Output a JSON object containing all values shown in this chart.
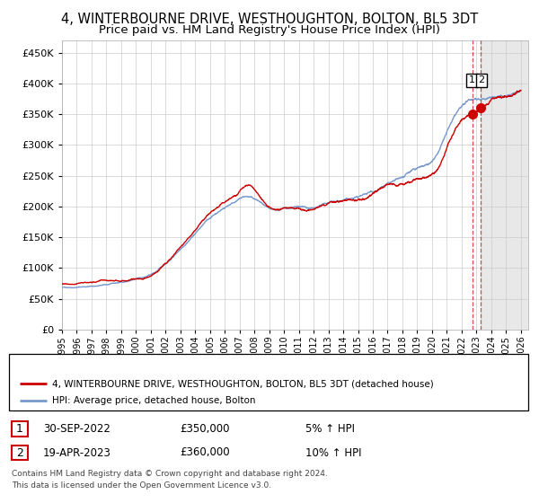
{
  "title": "4, WINTERBOURNE DRIVE, WESTHOUGHTON, BOLTON, BL5 3DT",
  "subtitle": "Price paid vs. HM Land Registry's House Price Index (HPI)",
  "title_fontsize": 10.5,
  "subtitle_fontsize": 9.5,
  "xlim_start": 1995.0,
  "xlim_end": 2026.5,
  "ylim": [
    0,
    470000
  ],
  "yticks": [
    0,
    50000,
    100000,
    150000,
    200000,
    250000,
    300000,
    350000,
    400000,
    450000
  ],
  "sale1_date": 2022.75,
  "sale1_price": 350000,
  "sale1_label": "1",
  "sale2_date": 2023.29,
  "sale2_price": 360000,
  "sale2_label": "2",
  "legend_line1": "4, WINTERBOURNE DRIVE, WESTHOUGHTON, BOLTON, BL5 3DT (detached house)",
  "legend_line2": "HPI: Average price, detached house, Bolton",
  "footer": "Contains HM Land Registry data © Crown copyright and database right 2024.\nThis data is licensed under the Open Government Licence v3.0.",
  "hpi_color": "#7799cc",
  "price_color": "#cc0000",
  "bg_color": "#ffffff",
  "grid_color": "#cccccc",
  "future_cutoff": 2023.29,
  "hpi_waypoints_x": [
    1995,
    1996,
    1997,
    1998,
    1999,
    2000,
    2001,
    2002,
    2003,
    2004,
    2005,
    2006,
    2007,
    2007.5,
    2008,
    2008.5,
    2009,
    2009.5,
    2010,
    2011,
    2012,
    2013,
    2014,
    2015,
    2016,
    2017,
    2018,
    2019,
    2020,
    2020.5,
    2021,
    2021.5,
    2022,
    2022.5,
    2022.75,
    2023.29,
    2024,
    2025,
    2026
  ],
  "hpi_waypoints_y": [
    68000,
    70000,
    72000,
    74000,
    77000,
    82000,
    88000,
    105000,
    130000,
    158000,
    182000,
    200000,
    215000,
    218000,
    213000,
    205000,
    192000,
    188000,
    190000,
    190000,
    186000,
    190000,
    194000,
    198000,
    207000,
    217000,
    222000,
    233000,
    247000,
    262000,
    288000,
    310000,
    325000,
    332000,
    335000,
    338000,
    340000,
    342000,
    345000
  ],
  "price_waypoints_x": [
    1995,
    1996,
    1997,
    1998,
    1999,
    2000,
    2001,
    2002,
    2003,
    2004,
    2005,
    2006,
    2007,
    2007.5,
    2008,
    2008.5,
    2009,
    2009.5,
    2010,
    2011,
    2012,
    2013,
    2014,
    2015,
    2016,
    2017,
    2018,
    2019,
    2020,
    2020.5,
    2021,
    2021.5,
    2022,
    2022.5,
    2022.75,
    2023.29,
    2024,
    2025,
    2026
  ],
  "price_waypoints_y": [
    74000,
    76000,
    78000,
    80000,
    82000,
    87000,
    92000,
    112000,
    138000,
    167000,
    193000,
    212000,
    228000,
    235000,
    228000,
    215000,
    205000,
    198000,
    200000,
    200000,
    195000,
    200000,
    202000,
    207000,
    215000,
    226000,
    232000,
    244000,
    259000,
    272000,
    302000,
    328000,
    345000,
    350000,
    350000,
    360000,
    372000,
    380000,
    388000
  ]
}
